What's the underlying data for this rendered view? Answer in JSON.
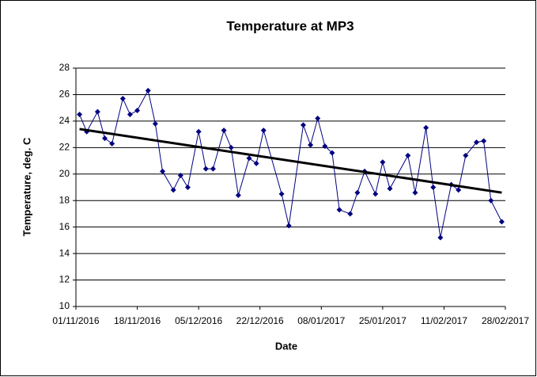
{
  "chart_data": {
    "type": "line",
    "title": "Temperature at MP3",
    "xlabel": "Date",
    "ylabel": "Temperature, deg. C",
    "x": [
      "02/11/2016",
      "04/11/2016",
      "07/11/2016",
      "09/11/2016",
      "11/11/2016",
      "14/11/2016",
      "16/11/2016",
      "18/11/2016",
      "21/11/2016",
      "23/11/2016",
      "25/11/2016",
      "28/11/2016",
      "30/11/2016",
      "02/12/2016",
      "05/12/2016",
      "07/12/2016",
      "09/12/2016",
      "12/12/2016",
      "14/12/2016",
      "16/12/2016",
      "19/12/2016",
      "21/12/2016",
      "23/12/2016",
      "28/12/2016",
      "30/12/2016",
      "03/01/2017",
      "05/01/2017",
      "07/01/2017",
      "09/01/2017",
      "11/01/2017",
      "13/01/2017",
      "16/01/2017",
      "18/01/2017",
      "20/01/2017",
      "23/01/2017",
      "25/01/2017",
      "27/01/2017",
      "01/02/2017",
      "03/02/2017",
      "06/02/2017",
      "08/02/2017",
      "10/02/2017",
      "13/02/2017",
      "15/02/2017",
      "17/02/2017",
      "20/02/2017",
      "22/02/2017",
      "24/02/2017",
      "27/02/2017"
    ],
    "series": [
      {
        "name": "Temperature",
        "color": "#000080",
        "values": [
          24.5,
          23.2,
          24.7,
          22.7,
          22.3,
          25.7,
          24.5,
          24.8,
          26.3,
          23.8,
          20.2,
          18.8,
          19.9,
          19.0,
          23.2,
          20.4,
          20.4,
          23.3,
          22.0,
          18.4,
          21.2,
          20.8,
          23.3,
          18.5,
          16.1,
          23.7,
          22.2,
          24.2,
          22.1,
          21.6,
          17.3,
          17.0,
          18.6,
          20.2,
          18.5,
          20.9,
          18.9,
          21.4,
          18.6,
          23.5,
          19.0,
          15.2,
          19.2,
          18.8,
          21.4,
          22.4,
          22.5,
          18.0,
          16.4
        ]
      }
    ],
    "trendline": {
      "color": "#000000",
      "x": [
        "02/11/2016",
        "27/02/2017"
      ],
      "values": [
        23.4,
        18.6
      ]
    },
    "xlim": [
      "01/11/2016",
      "28/02/2017"
    ],
    "xticks": [
      "01/11/2016",
      "18/11/2016",
      "05/12/2016",
      "22/12/2016",
      "08/01/2017",
      "25/01/2017",
      "11/02/2017",
      "28/02/2017"
    ],
    "ylim": [
      10,
      28
    ],
    "yticks": [
      10,
      12,
      14,
      16,
      18,
      20,
      22,
      24,
      26,
      28
    ],
    "grid": true
  }
}
